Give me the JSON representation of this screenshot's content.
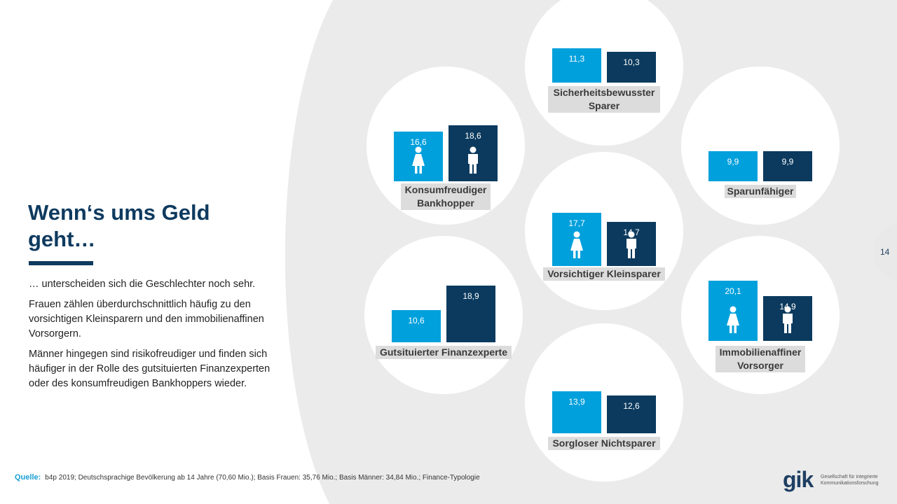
{
  "title": "Wenn‘s ums Geld geht…",
  "paragraphs": [
    "… unterscheiden sich die Geschlechter noch sehr.",
    "Frauen zählen überdurchschnittlich häufig zu den vorsichtigen Kleinsparern und den immobilienaffinen Vorsorgern.",
    "Männer hingegen sind risikofreudiger und finden sich häufiger in der Rolle des gutsituierten Finanzexperten oder des konsumfreudigen Bankhoppers wieder."
  ],
  "page_number": "14",
  "source": {
    "label": "Quelle:",
    "text": "b4p 2019; Deutschsprachige Bevölkerung ab 14 Jahre (70,60 Mio.); Basis Frauen: 35,76 Mio.; Basis Männer: 34,84 Mio.; Finance-Typologie"
  },
  "logo": {
    "mark": "gik",
    "line1": "Gesellschaft für integrierte",
    "line2": "Kommunikationsforschung"
  },
  "colors": {
    "women": "#00a0dc",
    "men": "#0b3a5e",
    "title": "#0e3a5f",
    "background_arc": "#ebebeb",
    "label_bg": "#dcdcdc"
  },
  "chart_data": {
    "type": "bar",
    "series": [
      {
        "name": "",
        "color": "#00a0dc",
        "icon": "woman-icon"
      },
      {
        "name": "",
        "color": "#0b3a5e",
        "icon": "man-icon"
      }
    ],
    "segments": [
      {
        "label": "Sicherheitsbewusster Sparer",
        "values": [
          11.3,
          10.3
        ],
        "value_labels": [
          "11,3",
          "10,3"
        ],
        "icons": false
      },
      {
        "label": "Konsumfreudiger Bankhopper",
        "values": [
          16.6,
          18.6
        ],
        "value_labels": [
          "16,6",
          "18,6"
        ],
        "icons": true
      },
      {
        "label": "Sparunfähiger",
        "values": [
          9.9,
          9.9
        ],
        "value_labels": [
          "9,9",
          "9,9"
        ],
        "icons": false
      },
      {
        "label": "Vorsichtiger Kleinsparer",
        "values": [
          17.7,
          14.7
        ],
        "value_labels": [
          "17,7",
          "14,7"
        ],
        "icons": true
      },
      {
        "label": "Gutsituierter Finanzexperte",
        "values": [
          10.6,
          18.9
        ],
        "value_labels": [
          "10,6",
          "18,9"
        ],
        "icons": false
      },
      {
        "label": "Immobilienaffiner Vorsorger",
        "values": [
          20.1,
          14.9
        ],
        "value_labels": [
          "20,1",
          "14,9"
        ],
        "icons": true
      },
      {
        "label": "Sorgloser Nichtsparer",
        "values": [
          13.9,
          12.6
        ],
        "value_labels": [
          "13,9",
          "12,6"
        ],
        "icons": false
      }
    ]
  }
}
